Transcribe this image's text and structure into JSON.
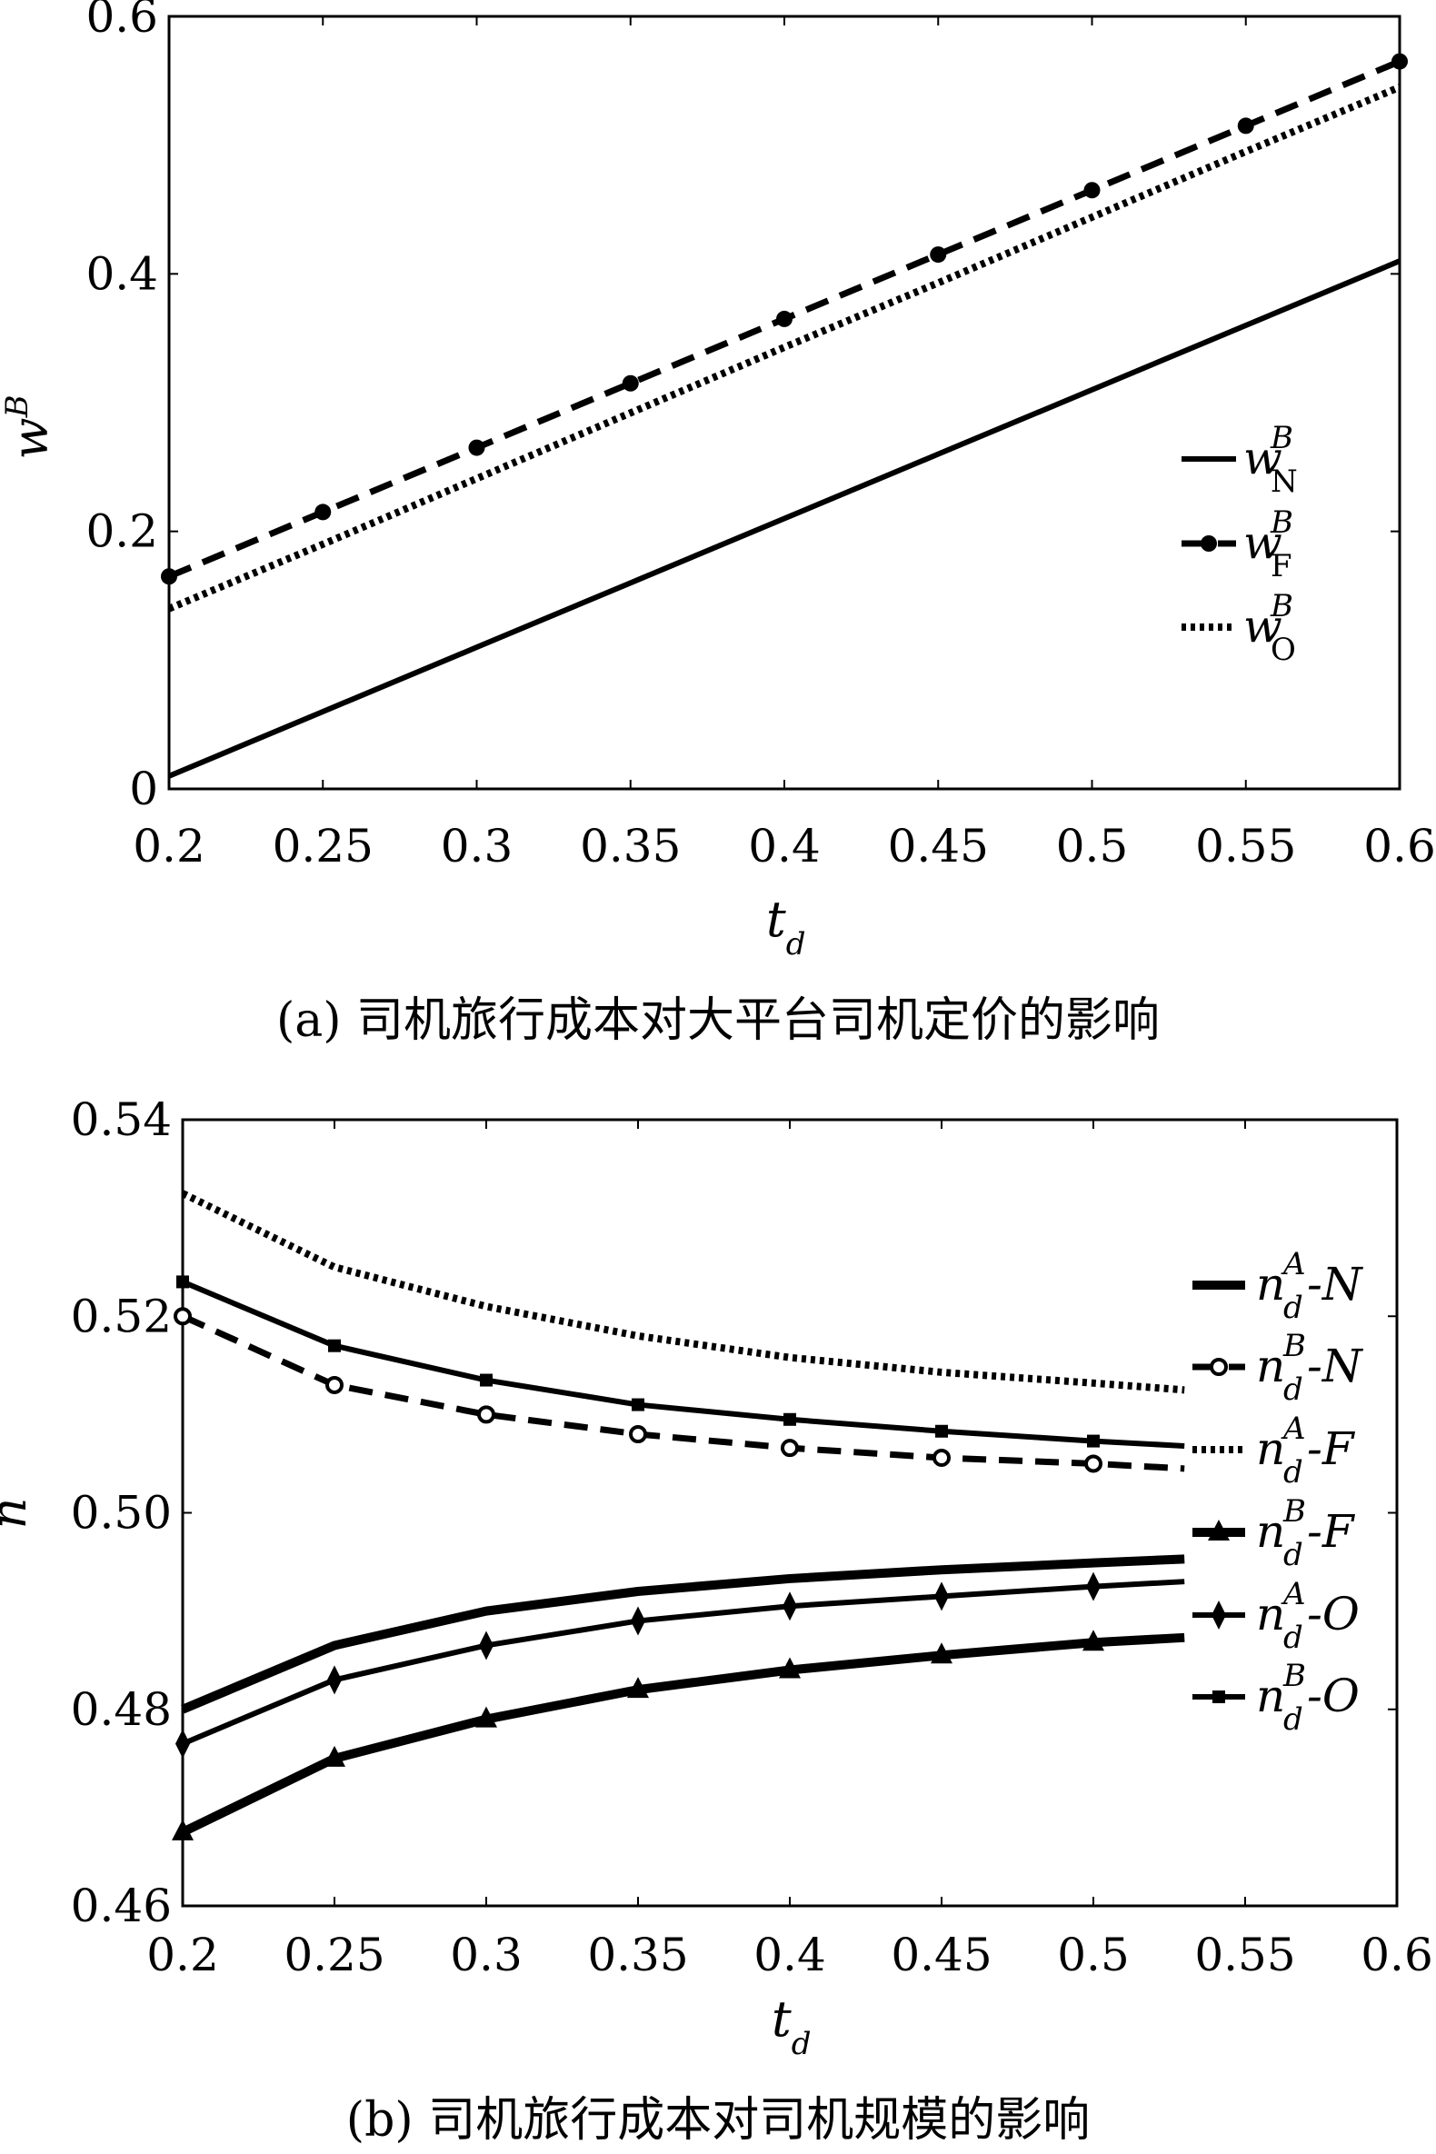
{
  "chart_data": [
    {
      "type": "line",
      "caption": "(a) 司机旅行成本对大平台司机定价的影响",
      "xlabel": {
        "base": "t",
        "sub": "d"
      },
      "ylabel": {
        "base": "w",
        "sup": "B"
      },
      "xlim": [
        0.2,
        0.6
      ],
      "ylim": [
        0,
        0.6
      ],
      "xticks": [
        "0.2",
        "0.25",
        "0.3",
        "0.35",
        "0.4",
        "0.45",
        "0.5",
        "0.55",
        "0.6"
      ],
      "yticks": [
        "0",
        "0.2",
        "0.4",
        "0.6"
      ],
      "grid": false,
      "legend_position": "right",
      "x": [
        0.2,
        0.25,
        0.3,
        0.35,
        0.4,
        0.45,
        0.5,
        0.55,
        0.6
      ],
      "series": [
        {
          "name": "w_N^B",
          "label": {
            "base": "w",
            "sup": "B",
            "sub": "N",
            "suffix": ""
          },
          "style": "solid",
          "marker": "none",
          "values": [
            0.01,
            0.06,
            0.11,
            0.16,
            0.21,
            0.26,
            0.31,
            0.36,
            0.41
          ]
        },
        {
          "name": "w_F^B",
          "label": {
            "base": "w",
            "sup": "B",
            "sub": "F",
            "suffix": ""
          },
          "style": "dashed",
          "marker": "circle",
          "values": [
            0.165,
            0.215,
            0.265,
            0.315,
            0.365,
            0.415,
            0.465,
            0.515,
            0.565
          ]
        },
        {
          "name": "w_O^B",
          "label": {
            "base": "w",
            "sup": "B",
            "sub": "O",
            "suffix": ""
          },
          "style": "dotted",
          "marker": "none",
          "values": [
            0.14,
            0.19,
            0.241,
            0.292,
            0.343,
            0.393,
            0.444,
            0.495,
            0.545
          ]
        }
      ]
    },
    {
      "type": "line",
      "caption": "(b) 司机旅行成本对司机规模的影响",
      "xlabel": {
        "base": "t",
        "sub": "d"
      },
      "ylabel": {
        "base": "n"
      },
      "xlim": [
        0.2,
        0.6
      ],
      "ylim": [
        0.46,
        0.54
      ],
      "xticks": [
        "0.2",
        "0.25",
        "0.3",
        "0.35",
        "0.4",
        "0.45",
        "0.5",
        "0.55",
        "0.6"
      ],
      "yticks": [
        "0.46",
        "0.48",
        "0.50",
        "0.52",
        "0.54"
      ],
      "grid": false,
      "legend_position": "right",
      "x": [
        0.2,
        0.25,
        0.3,
        0.35,
        0.4,
        0.45,
        0.5,
        0.53
      ],
      "series": [
        {
          "name": "n_d^A-N",
          "label": {
            "base": "n",
            "sup": "A",
            "sub": "d",
            "suffix": "-N"
          },
          "style": "thick",
          "marker": "none",
          "values": [
            0.48,
            0.4865,
            0.49,
            0.492,
            0.4933,
            0.4942,
            0.4949,
            0.4953
          ]
        },
        {
          "name": "n_d^B-N",
          "label": {
            "base": "n",
            "sup": "B",
            "sub": "d",
            "suffix": "-N"
          },
          "style": "dashed",
          "marker": "circle-open",
          "values": [
            0.52,
            0.513,
            0.51,
            0.508,
            0.5066,
            0.5056,
            0.505,
            0.5045
          ]
        },
        {
          "name": "n_d^A-F",
          "label": {
            "base": "n",
            "sup": "A",
            "sub": "d",
            "suffix": "-F"
          },
          "style": "dotted",
          "marker": "none",
          "values": [
            0.5325,
            0.525,
            0.521,
            0.518,
            0.5158,
            0.5143,
            0.5132,
            0.5125
          ]
        },
        {
          "name": "n_d^B-F",
          "label": {
            "base": "n",
            "sup": "B",
            "sub": "d",
            "suffix": "-F"
          },
          "style": "thick",
          "marker": "triangle",
          "values": [
            0.4675,
            0.475,
            0.479,
            0.482,
            0.484,
            0.4855,
            0.4868,
            0.4873
          ]
        },
        {
          "name": "n_d^A-O",
          "label": {
            "base": "n",
            "sup": "A",
            "sub": "d",
            "suffix": "-O"
          },
          "style": "solid",
          "marker": "diamond",
          "values": [
            0.4765,
            0.483,
            0.4865,
            0.489,
            0.4905,
            0.4915,
            0.4925,
            0.493
          ]
        },
        {
          "name": "n_d^B-O",
          "label": {
            "base": "n",
            "sup": "B",
            "sub": "d",
            "suffix": "-O"
          },
          "style": "solid",
          "marker": "square",
          "values": [
            0.5235,
            0.517,
            0.5135,
            0.511,
            0.5095,
            0.5083,
            0.5073,
            0.5068
          ]
        }
      ]
    }
  ]
}
